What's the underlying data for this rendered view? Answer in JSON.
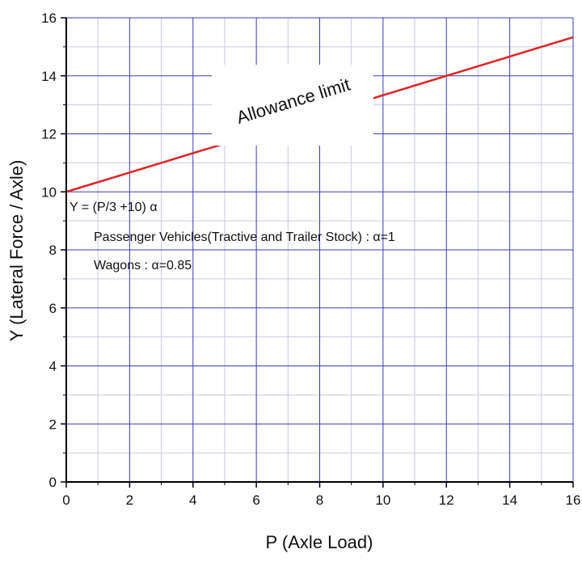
{
  "colors": {
    "background": "#ffffff",
    "grid_major": "#3b3bb8",
    "grid_minor": "#c9c9e3",
    "axis": "#000000",
    "line": "#e02424"
  },
  "chart_data": {
    "type": "line",
    "title": "",
    "xlabel": "P (Axle Load)",
    "ylabel": "Y (Lateral Force / Axle)",
    "xlim": [
      0,
      16
    ],
    "ylim": [
      0,
      16
    ],
    "x_ticks": [
      0,
      2,
      4,
      6,
      8,
      10,
      12,
      14,
      16
    ],
    "y_ticks": [
      0,
      2,
      4,
      6,
      8,
      10,
      12,
      14,
      16
    ],
    "x_tick_labels": [
      "0",
      "2",
      "4",
      "6",
      "8",
      "10",
      "12",
      "14",
      "16"
    ],
    "y_tick_labels": [
      "0",
      "2",
      "4",
      "6",
      "8",
      "10",
      "12",
      "14",
      "16"
    ],
    "grid": true,
    "series": [
      {
        "name": "Allowance limit",
        "color": "#e02424",
        "x": [
          0,
          16
        ],
        "y": [
          10,
          15.33
        ]
      }
    ],
    "annotations": [
      "Y = (P/3 +10) α",
      "Passenger Vehicles(Tractive and Trailer Stock) : α=1",
      "Wagons : α=0.85"
    ]
  }
}
